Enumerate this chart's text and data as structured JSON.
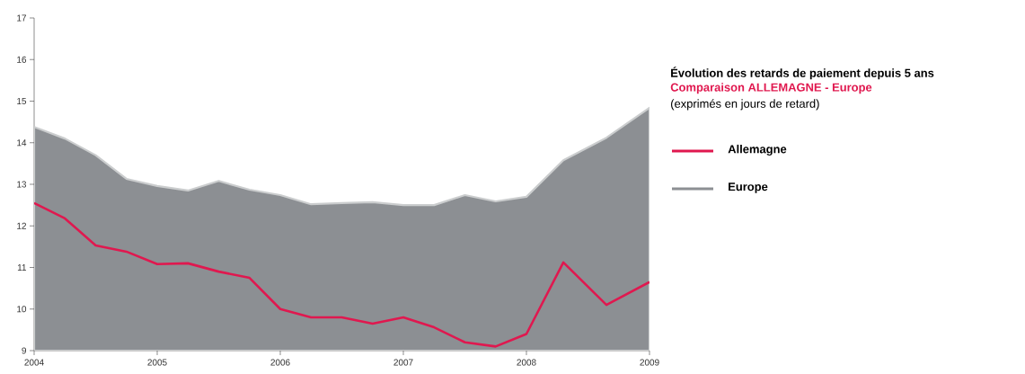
{
  "chart_data": {
    "type": "line",
    "title": "Évolution des retards de paiement depuis 5 ans",
    "subtitle": "Comparaison ALLEMAGNE - Europe",
    "annotations": [
      "(exprimés en jours de retard)"
    ],
    "x": [
      2004,
      2004.25,
      2004.5,
      2004.75,
      2005,
      2005.25,
      2005.5,
      2005.75,
      2006,
      2006.25,
      2006.5,
      2006.75,
      2007,
      2007.25,
      2007.5,
      2007.75,
      2008,
      2008.3,
      2008.65,
      2009
    ],
    "series": [
      {
        "name": "Allemagne",
        "color": "#e0184f",
        "values": [
          12.55,
          12.18,
          11.53,
          11.38,
          11.08,
          11.1,
          10.9,
          10.75,
          10.0,
          9.8,
          9.8,
          9.65,
          9.8,
          9.56,
          9.2,
          9.1,
          9.4,
          11.12,
          10.1,
          10.65
        ]
      },
      {
        "name": "Europe",
        "type": "area",
        "color": "#8c8f93",
        "values": [
          14.38,
          14.1,
          13.7,
          13.13,
          12.96,
          12.85,
          13.08,
          12.87,
          12.74,
          12.52,
          12.55,
          12.57,
          12.5,
          12.5,
          12.74,
          12.59,
          12.7,
          13.58,
          14.12,
          14.84
        ]
      }
    ],
    "xlim": [
      2004,
      2009
    ],
    "xticks": [
      2004,
      2005,
      2006,
      2007,
      2008,
      2009
    ],
    "ylim": [
      9,
      17
    ],
    "yticks": [
      9,
      10,
      11,
      12,
      13,
      14,
      15,
      16,
      17
    ],
    "legend": "right",
    "grid": false
  }
}
